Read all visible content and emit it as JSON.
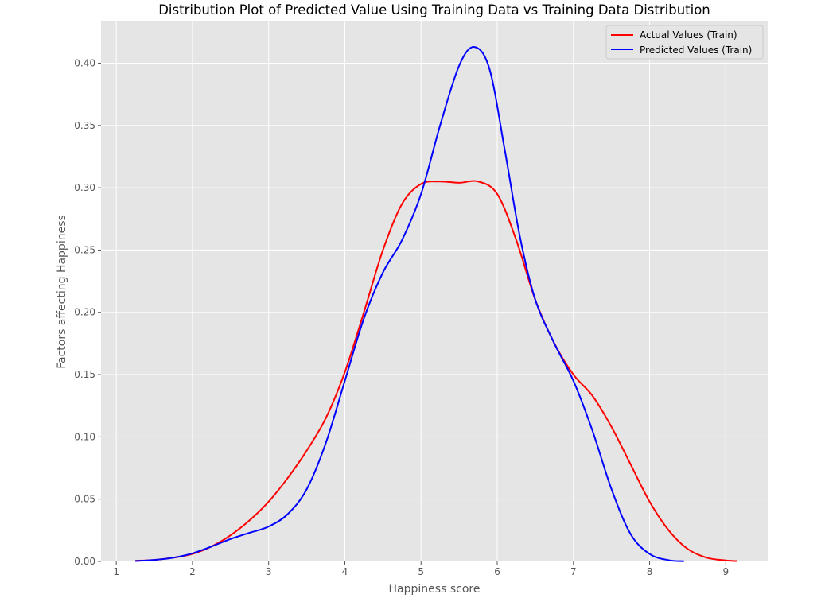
{
  "chart_data": {
    "type": "line",
    "title": "Distribution  Plot of  Predicted Value Using Training Data vs Training Data Distribution",
    "xlabel": "Happiness score",
    "ylabel": "Factors affecting Happiness",
    "xlim": [
      0.8,
      9.55
    ],
    "ylim": [
      0,
      0.4335
    ],
    "xticks": [
      1,
      2,
      3,
      4,
      5,
      6,
      7,
      8,
      9
    ],
    "xtick_labels": [
      "1",
      "2",
      "3",
      "4",
      "5",
      "6",
      "7",
      "8",
      "9"
    ],
    "yticks": [
      0.0,
      0.05,
      0.1,
      0.15,
      0.2,
      0.25,
      0.3,
      0.35,
      0.4
    ],
    "ytick_labels": [
      "0.00",
      "0.05",
      "0.10",
      "0.15",
      "0.20",
      "0.25",
      "0.30",
      "0.35",
      "0.40"
    ],
    "grid": true,
    "legend_position": "top-right",
    "background_color": "#e5e5e5",
    "grid_color": "#ffffff",
    "series": [
      {
        "name": "Actual Values (Train)",
        "color": "#ff0000",
        "x": [
          1.25,
          1.5,
          1.75,
          2.0,
          2.25,
          2.5,
          2.75,
          3.0,
          3.25,
          3.5,
          3.75,
          4.0,
          4.25,
          4.5,
          4.75,
          5.0,
          5.25,
          5.5,
          5.75,
          6.0,
          6.25,
          6.5,
          6.75,
          7.0,
          7.25,
          7.5,
          7.75,
          8.0,
          8.25,
          8.5,
          8.75,
          9.0,
          9.15
        ],
        "y": [
          0.0005,
          0.0012,
          0.003,
          0.006,
          0.012,
          0.021,
          0.033,
          0.048,
          0.067,
          0.089,
          0.115,
          0.152,
          0.2,
          0.25,
          0.287,
          0.303,
          0.305,
          0.304,
          0.305,
          0.295,
          0.258,
          0.21,
          0.175,
          0.15,
          0.133,
          0.108,
          0.078,
          0.048,
          0.025,
          0.01,
          0.003,
          0.0008,
          0.0003
        ]
      },
      {
        "name": "Predicted Values (Train)",
        "color": "#0000ff",
        "x": [
          1.25,
          1.5,
          1.75,
          2.0,
          2.25,
          2.5,
          2.75,
          3.0,
          3.25,
          3.5,
          3.75,
          4.0,
          4.25,
          4.5,
          4.75,
          5.0,
          5.25,
          5.5,
          5.7,
          5.9,
          6.1,
          6.3,
          6.5,
          6.75,
          7.0,
          7.25,
          7.5,
          7.75,
          8.0,
          8.25,
          8.45
        ],
        "y": [
          0.0003,
          0.0012,
          0.003,
          0.0065,
          0.012,
          0.018,
          0.023,
          0.028,
          0.038,
          0.058,
          0.095,
          0.145,
          0.195,
          0.232,
          0.258,
          0.295,
          0.35,
          0.398,
          0.413,
          0.395,
          0.33,
          0.26,
          0.21,
          0.175,
          0.145,
          0.105,
          0.058,
          0.022,
          0.006,
          0.001,
          0.0002
        ]
      }
    ]
  }
}
